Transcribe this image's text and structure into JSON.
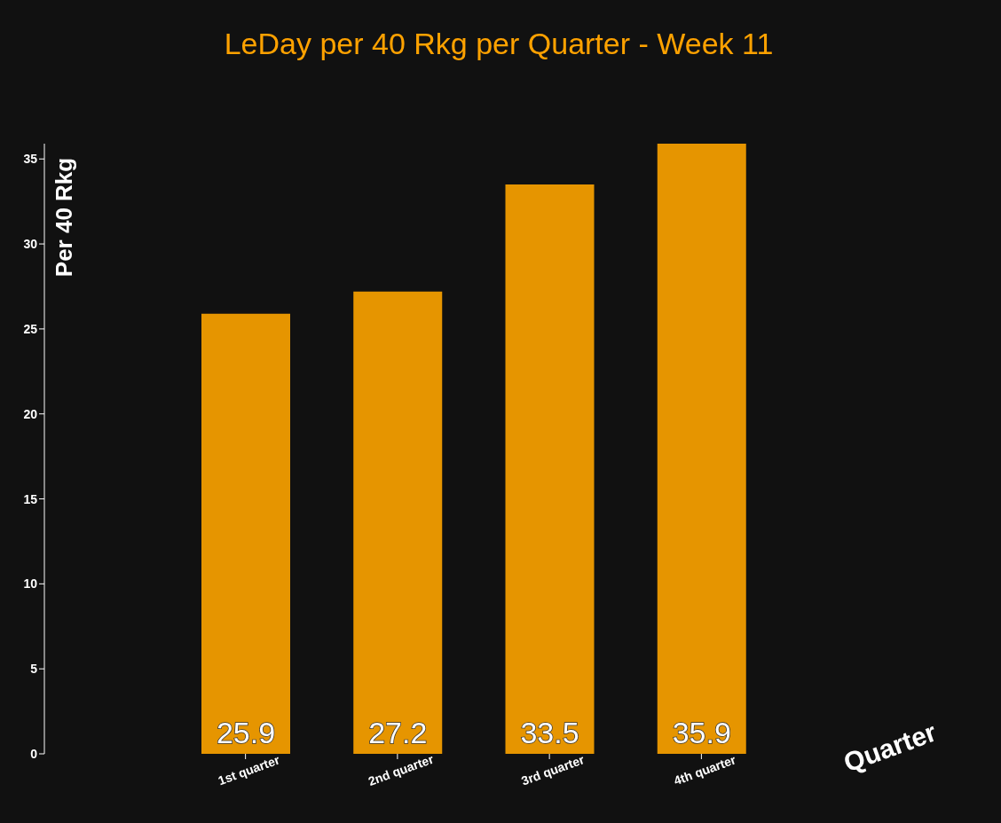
{
  "chart_data": {
    "type": "bar",
    "title": "LeDay per 40 Rkg per Quarter - Week 11",
    "xlabel": "Quarter",
    "ylabel": "Per 40 Rkg",
    "categories": [
      "1st quarter",
      "2nd quarter",
      "3rd quarter",
      "4th quarter"
    ],
    "values": [
      25.9,
      27.2,
      33.5,
      35.9
    ],
    "color": "#e69500",
    "ylim": [
      0,
      35.9
    ],
    "yticks": [
      0,
      5,
      10,
      15,
      20,
      25,
      30,
      35
    ],
    "grid": false,
    "data_labels": true
  }
}
